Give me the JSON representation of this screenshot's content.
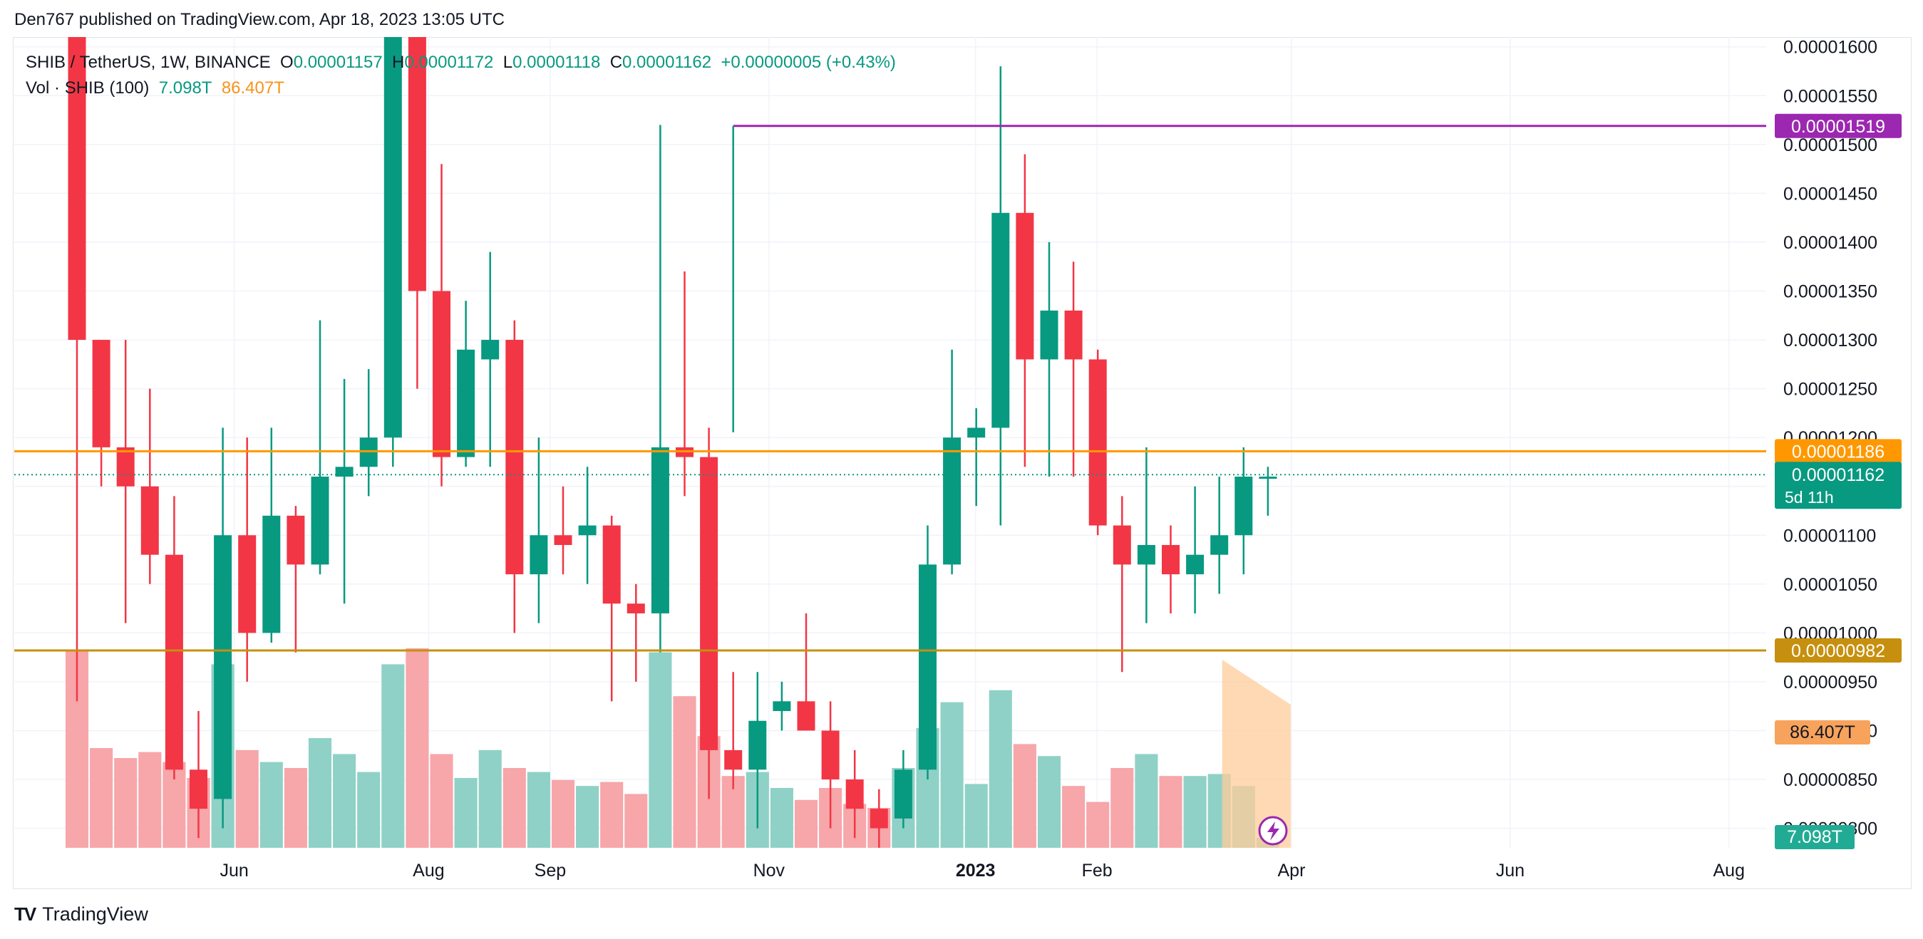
{
  "publisher_line": "Den767 published on TradingView.com, Apr 18, 2023 13:05 UTC",
  "legend": {
    "symbol": "SHIB / TetherUS, 1W, BINANCE",
    "o_label": "O",
    "o": "0.00001157",
    "h_label": "H",
    "h": "0.00001172",
    "l_label": "L",
    "l": "0.00001118",
    "c_label": "C",
    "c": "0.00001162",
    "change": "+0.00000005 (+0.43%)",
    "vol_label": "Vol · SHIB (100)",
    "vol_up": "7.098T",
    "vol_ma": "86.407T"
  },
  "brand": "TradingView",
  "colors": {
    "up": "#089981",
    "down": "#f23645",
    "vol_up": "#8fd1c6",
    "vol_down": "#f7a6aa",
    "purple": "#9c27b0",
    "orange": "#ff9800",
    "dark_orange": "#c6900e",
    "grid": "#f0f3fa"
  },
  "chart_data": {
    "type": "candlestick",
    "price_axis": {
      "ylim": [
        7.8e-06,
        1.61e-05
      ],
      "ticks": [
        "0.00001600",
        "0.00001550",
        "0.00001500",
        "0.00001450",
        "0.00001400",
        "0.00001350",
        "0.00001300",
        "0.00001250",
        "0.00001200",
        "0.00001150",
        "0.00001100",
        "0.00001050",
        "0.00001000",
        "0.00000950",
        "0.00000900",
        "0.00000850",
        "0.00000800"
      ]
    },
    "time_axis": {
      "labels": [
        {
          "label": "Jun",
          "week": 6.5
        },
        {
          "label": "Aug",
          "week": 14.5
        },
        {
          "label": "Sep",
          "week": 19.5
        },
        {
          "label": "Nov",
          "week": 28.5
        },
        {
          "label": "2023",
          "week": 37,
          "bold": true
        },
        {
          "label": "Feb",
          "week": 42
        },
        {
          "label": "Apr",
          "week": 50
        },
        {
          "label": "Jun",
          "week": 59
        },
        {
          "label": "Aug",
          "week": 68
        }
      ]
    },
    "weeks_visible": 78,
    "candles": [
      {
        "o": 1.82e-05,
        "h": 1.9e-05,
        "l": 9.3e-06,
        "c": 1.3e-05,
        "v": 0.99
      },
      {
        "o": 1.3e-05,
        "h": 1.3e-05,
        "l": 1.15e-05,
        "c": 1.19e-05,
        "v": 0.5
      },
      {
        "o": 1.19e-05,
        "h": 1.3e-05,
        "l": 1.01e-05,
        "c": 1.15e-05,
        "v": 0.45
      },
      {
        "o": 1.15e-05,
        "h": 1.25e-05,
        "l": 1.05e-05,
        "c": 1.08e-05,
        "v": 0.48
      },
      {
        "o": 1.08e-05,
        "h": 1.14e-05,
        "l": 8.5e-06,
        "c": 8.6e-06,
        "v": 0.43
      },
      {
        "o": 8.6e-06,
        "h": 9.2e-06,
        "l": 7.9e-06,
        "c": 8.2e-06,
        "v": 0.35
      },
      {
        "o": 8.3e-06,
        "h": 1.21e-05,
        "l": 8e-06,
        "c": 1.1e-05,
        "v": 0.92
      },
      {
        "o": 1.1e-05,
        "h": 1.2e-05,
        "l": 9.5e-06,
        "c": 1e-05,
        "v": 0.49
      },
      {
        "o": 1e-05,
        "h": 1.21e-05,
        "l": 9.9e-06,
        "c": 1.12e-05,
        "v": 0.43
      },
      {
        "o": 1.12e-05,
        "h": 1.13e-05,
        "l": 9.8e-06,
        "c": 1.07e-05,
        "v": 0.4
      },
      {
        "o": 1.07e-05,
        "h": 1.32e-05,
        "l": 1.06e-05,
        "c": 1.16e-05,
        "v": 0.55
      },
      {
        "o": 1.16e-05,
        "h": 1.26e-05,
        "l": 1.03e-05,
        "c": 1.17e-05,
        "v": 0.47
      },
      {
        "o": 1.17e-05,
        "h": 1.27e-05,
        "l": 1.14e-05,
        "c": 1.2e-05,
        "v": 0.38
      },
      {
        "o": 1.2e-05,
        "h": 1.75e-05,
        "l": 1.17e-05,
        "c": 1.72e-05,
        "v": 0.92
      },
      {
        "o": 1.72e-05,
        "h": 1.73e-05,
        "l": 1.25e-05,
        "c": 1.35e-05,
        "v": 1.0
      },
      {
        "o": 1.35e-05,
        "h": 1.48e-05,
        "l": 1.15e-05,
        "c": 1.18e-05,
        "v": 0.47
      },
      {
        "o": 1.18e-05,
        "h": 1.34e-05,
        "l": 1.17e-05,
        "c": 1.29e-05,
        "v": 0.35
      },
      {
        "o": 1.28e-05,
        "h": 1.39e-05,
        "l": 1.17e-05,
        "c": 1.3e-05,
        "v": 0.49
      },
      {
        "o": 1.3e-05,
        "h": 1.32e-05,
        "l": 1e-05,
        "c": 1.06e-05,
        "v": 0.4
      },
      {
        "o": 1.06e-05,
        "h": 1.2e-05,
        "l": 1.01e-05,
        "c": 1.1e-05,
        "v": 0.38
      },
      {
        "o": 1.1e-05,
        "h": 1.15e-05,
        "l": 1.06e-05,
        "c": 1.09e-05,
        "v": 0.34
      },
      {
        "o": 1.1e-05,
        "h": 1.17e-05,
        "l": 1.05e-05,
        "c": 1.11e-05,
        "v": 0.31
      },
      {
        "o": 1.11e-05,
        "h": 1.12e-05,
        "l": 9.3e-06,
        "c": 1.03e-05,
        "v": 0.33
      },
      {
        "o": 1.03e-05,
        "h": 1.05e-05,
        "l": 9.5e-06,
        "c": 1.02e-05,
        "v": 0.27
      },
      {
        "o": 1.02e-05,
        "h": 1.52e-05,
        "l": 9.8e-06,
        "c": 1.19e-05,
        "v": 0.98
      },
      {
        "o": 1.19e-05,
        "h": 1.37e-05,
        "l": 1.14e-05,
        "c": 1.18e-05,
        "v": 0.76
      },
      {
        "o": 1.18e-05,
        "h": 1.21e-05,
        "l": 8.3e-06,
        "c": 8.8e-06,
        "v": 0.56
      },
      {
        "o": 8.8e-06,
        "h": 9.6e-06,
        "l": 8.4e-06,
        "c": 8.6e-06,
        "v": 0.36
      },
      {
        "o": 8.6e-06,
        "h": 9.6e-06,
        "l": 8e-06,
        "c": 9.1e-06,
        "v": 0.38
      },
      {
        "o": 9.2e-06,
        "h": 9.5e-06,
        "l": 9e-06,
        "c": 9.3e-06,
        "v": 0.3
      },
      {
        "o": 9.3e-06,
        "h": 1.02e-05,
        "l": 9e-06,
        "c": 9e-06,
        "v": 0.24
      },
      {
        "o": 9e-06,
        "h": 9.3e-06,
        "l": 8e-06,
        "c": 8.5e-06,
        "v": 0.3
      },
      {
        "o": 8.5e-06,
        "h": 8.8e-06,
        "l": 7.9e-06,
        "c": 8.2e-06,
        "v": 0.22
      },
      {
        "o": 8.2e-06,
        "h": 8.4e-06,
        "l": 7.8e-06,
        "c": 8e-06,
        "v": 0.2
      },
      {
        "o": 8.1e-06,
        "h": 8.8e-06,
        "l": 8e-06,
        "c": 8.6e-06,
        "v": 0.4
      },
      {
        "o": 8.6e-06,
        "h": 1.11e-05,
        "l": 8.5e-06,
        "c": 1.07e-05,
        "v": 0.6
      },
      {
        "o": 1.07e-05,
        "h": 1.29e-05,
        "l": 1.06e-05,
        "c": 1.2e-05,
        "v": 0.73
      },
      {
        "o": 1.2e-05,
        "h": 1.23e-05,
        "l": 1.13e-05,
        "c": 1.21e-05,
        "v": 0.32
      },
      {
        "o": 1.21e-05,
        "h": 1.58e-05,
        "l": 1.11e-05,
        "c": 1.43e-05,
        "v": 0.79
      },
      {
        "o": 1.43e-05,
        "h": 1.49e-05,
        "l": 1.17e-05,
        "c": 1.28e-05,
        "v": 0.52
      },
      {
        "o": 1.28e-05,
        "h": 1.4e-05,
        "l": 1.16e-05,
        "c": 1.33e-05,
        "v": 0.46
      },
      {
        "o": 1.33e-05,
        "h": 1.38e-05,
        "l": 1.16e-05,
        "c": 1.28e-05,
        "v": 0.31
      },
      {
        "o": 1.28e-05,
        "h": 1.29e-05,
        "l": 1.1e-05,
        "c": 1.11e-05,
        "v": 0.23
      },
      {
        "o": 1.11e-05,
        "h": 1.14e-05,
        "l": 9.6e-06,
        "c": 1.07e-05,
        "v": 0.4
      },
      {
        "o": 1.07e-05,
        "h": 1.19e-05,
        "l": 1.01e-05,
        "c": 1.09e-05,
        "v": 0.47
      },
      {
        "o": 1.09e-05,
        "h": 1.11e-05,
        "l": 1.02e-05,
        "c": 1.06e-05,
        "v": 0.36
      },
      {
        "o": 1.06e-05,
        "h": 1.15e-05,
        "l": 1.02e-05,
        "c": 1.08e-05,
        "v": 0.36
      },
      {
        "o": 1.08e-05,
        "h": 1.16e-05,
        "l": 1.04e-05,
        "c": 1.1e-05,
        "v": 0.37
      },
      {
        "o": 1.1e-05,
        "h": 1.19e-05,
        "l": 1.06e-05,
        "c": 1.16e-05,
        "v": 0.31
      },
      {
        "o": 1.16e-05,
        "h": 1.17e-05,
        "l": 1.12e-05,
        "c": 1.16e-05,
        "v": 0.05
      }
    ],
    "volume_ma_shade": [
      0.8,
      0.7
    ],
    "horizontal_lines": [
      {
        "price": "0.00001519",
        "color": "#9c27b0",
        "from_week": 27
      },
      {
        "price": "0.00001186",
        "color": "#ff9800",
        "from_week": 0
      },
      {
        "price": "0.00000982",
        "color": "#c6900e",
        "from_week": 0
      }
    ],
    "last_price": {
      "price": "0.00001162",
      "countdown": "5d 11h"
    },
    "vol_badges": {
      "ma": "86.407T",
      "up": "7.098T"
    }
  }
}
